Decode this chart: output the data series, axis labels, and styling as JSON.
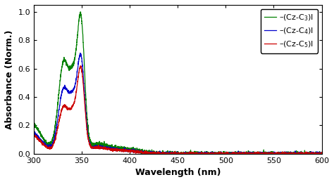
{
  "title": "",
  "xlabel": "Wavelength (nm)",
  "ylabel": "Absorbance (Norm.)",
  "xlim": [
    300,
    600
  ],
  "ylim": [
    0,
    1.05
  ],
  "xticks": [
    300,
    350,
    400,
    450,
    500,
    550,
    600
  ],
  "yticks": [
    0,
    0.2,
    0.4,
    0.6,
    0.8,
    1.0
  ],
  "legend_labels": [
    "–(Cz-C$_3$)I",
    "–(Cz-C$_4$)I",
    "–(Cz-C$_5$)I"
  ],
  "line_colors": [
    "#008000",
    "#0000cc",
    "#cc0000"
  ],
  "background_color": "#ffffff",
  "legend_fontsize": 8,
  "axis_fontsize": 9,
  "tick_fontsize": 8
}
